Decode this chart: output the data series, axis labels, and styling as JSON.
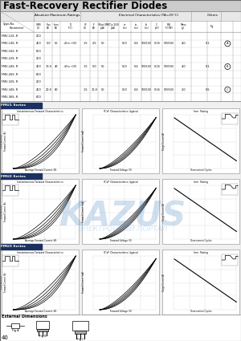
{
  "title": "Fast-Recovery Rectifier Diodes",
  "bg_color": "#f0f0f0",
  "table_bg": "#ffffff",
  "header_bg": "#e0e0e0",
  "type_nos": [
    "FMU-12S, R",
    "FMU-14S, R",
    "FMU-16S, R",
    "FMU-22S, R",
    "FMU-24S, R",
    "FMU-26S, R",
    "FMU-32S, R",
    "FMU-34S, R",
    "FMU-36S, R"
  ],
  "vrrm": [
    200,
    400,
    600,
    200,
    400,
    600,
    200,
    400,
    600
  ],
  "series_labels": [
    "FMU1 Series",
    "FMU2 Series",
    "FMU3 Series"
  ],
  "series_data": [
    {
      "ifav": "5.0",
      "ifsm": "50",
      "tj": "-40 to +150",
      "vf": "1.5",
      "if_": "2.5",
      "ir1": "50",
      "trr": "500",
      "ta": "0.4",
      "tb1": "100/100",
      "c": "0.16",
      "tb2": "100/500",
      "rth": "4.0",
      "mass": "0.1"
    },
    {
      "ifav": "10.0",
      "ifsm": "40",
      "tj": "-40 to +150",
      "vf": "1.5",
      "if_": "5.0",
      "ir1": "50",
      "trr": "500",
      "ta": "0.4",
      "tb1": "100/100",
      "c": "0.16",
      "tb2": "100/500",
      "rth": "4.0",
      "mass": "0.1"
    },
    {
      "ifav": "20.0",
      "ifsm": "80",
      "tj": "",
      "vf": "1.5",
      "if_": "10.0",
      "ir1": "50",
      "trr": "500",
      "ta": "0.4",
      "tb1": "100/100",
      "c": "0.16",
      "tb2": "100/500",
      "rth": "2.0",
      "mass": "0.5"
    }
  ],
  "watermark_text": "KAZUS",
  "watermark_sub": "ЭЛЕКТРОННЫЙ ПОРТАЛ",
  "page_number": "40"
}
